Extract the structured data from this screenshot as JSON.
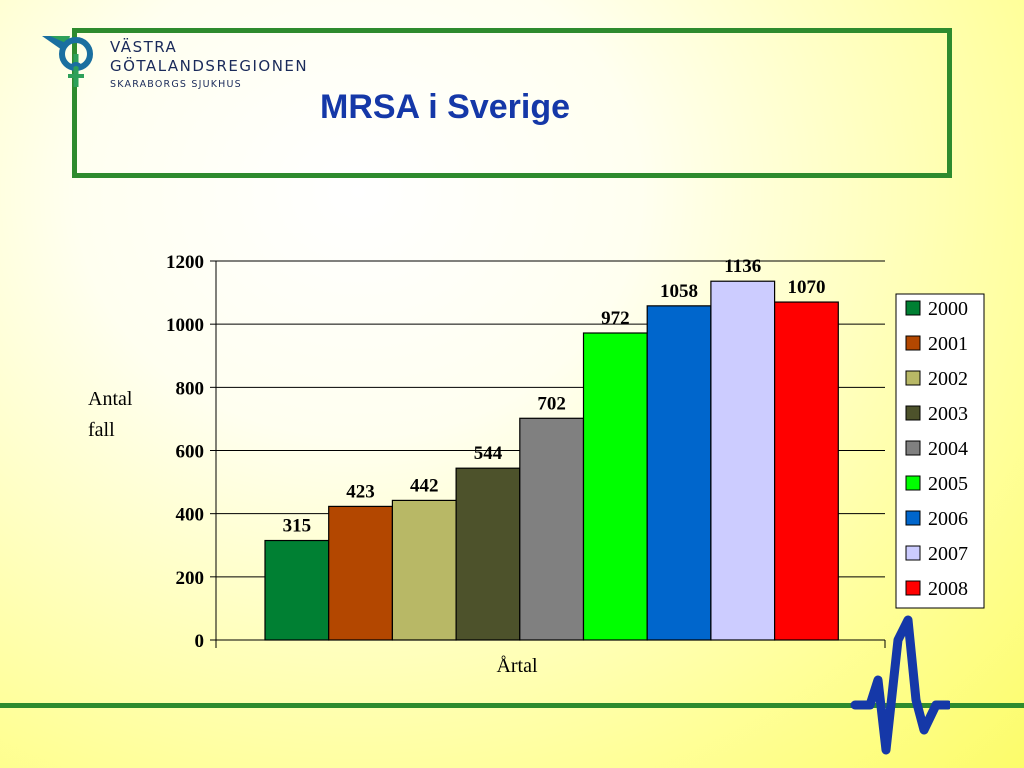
{
  "header": {
    "title": "MRSA i Sverige",
    "logo": {
      "line1": "VÄSTRA",
      "line2": "GÖTALANDSREGIONEN",
      "line3": "SKARABORGS SJUKHUS"
    }
  },
  "colors": {
    "frame": "#2e8b2e",
    "title": "#1538a8"
  },
  "chart_data": {
    "type": "bar",
    "title": "",
    "xlabel": "Årtal",
    "ylabel": "Antal fall",
    "ylabel_lines": [
      "Antal",
      "fall"
    ],
    "ylim": [
      0,
      1200
    ],
    "yticks": [
      0,
      200,
      400,
      600,
      800,
      1000,
      1200
    ],
    "grid": true,
    "legend_position": "right",
    "series": [
      {
        "name": "2000",
        "value": 315,
        "color": "#008033"
      },
      {
        "name": "2001",
        "value": 423,
        "color": "#b34700"
      },
      {
        "name": "2002",
        "value": 442,
        "color": "#b8b866"
      },
      {
        "name": "2003",
        "value": 544,
        "color": "#4d522b"
      },
      {
        "name": "2004",
        "value": 702,
        "color": "#808080"
      },
      {
        "name": "2005",
        "value": 972,
        "color": "#00ff00"
      },
      {
        "name": "2006",
        "value": 1058,
        "color": "#0066cc"
      },
      {
        "name": "2007",
        "value": 1136,
        "color": "#ccccff"
      },
      {
        "name": "2008",
        "value": 1070,
        "color": "#ff0000"
      }
    ]
  }
}
